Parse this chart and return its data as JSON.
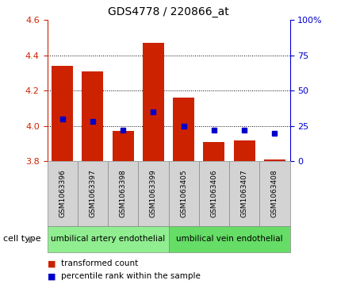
{
  "title": "GDS4778 / 220866_at",
  "samples": [
    "GSM1063396",
    "GSM1063397",
    "GSM1063398",
    "GSM1063399",
    "GSM1063405",
    "GSM1063406",
    "GSM1063407",
    "GSM1063408"
  ],
  "transformed_counts": [
    4.34,
    4.31,
    3.97,
    4.47,
    4.16,
    3.91,
    3.92,
    3.81
  ],
  "percentile_ranks": [
    30,
    28,
    22,
    35,
    25,
    22,
    22,
    20
  ],
  "bar_bottom": 3.8,
  "ylim_left": [
    3.8,
    4.6
  ],
  "ylim_right": [
    0,
    100
  ],
  "yticks_left": [
    3.8,
    4.0,
    4.2,
    4.4,
    4.6
  ],
  "yticks_right": [
    0,
    25,
    50,
    75,
    100
  ],
  "ytick_labels_right": [
    "0",
    "25",
    "50",
    "75",
    "100%"
  ],
  "bar_color": "#CC2200",
  "square_color": "#0000CC",
  "cell_type_groups": [
    {
      "label": "umbilical artery endothelial",
      "start": 0,
      "end": 3,
      "color": "#90EE90"
    },
    {
      "label": "umbilical vein endothelial",
      "start": 4,
      "end": 7,
      "color": "#66DD66"
    }
  ],
  "cell_type_label": "cell type",
  "legend_red": "transformed count",
  "legend_blue": "percentile rank within the sample",
  "x_cell_bg": "#d3d3d3",
  "title_fontsize": 10,
  "tick_fontsize": 8,
  "sample_fontsize": 6.5
}
